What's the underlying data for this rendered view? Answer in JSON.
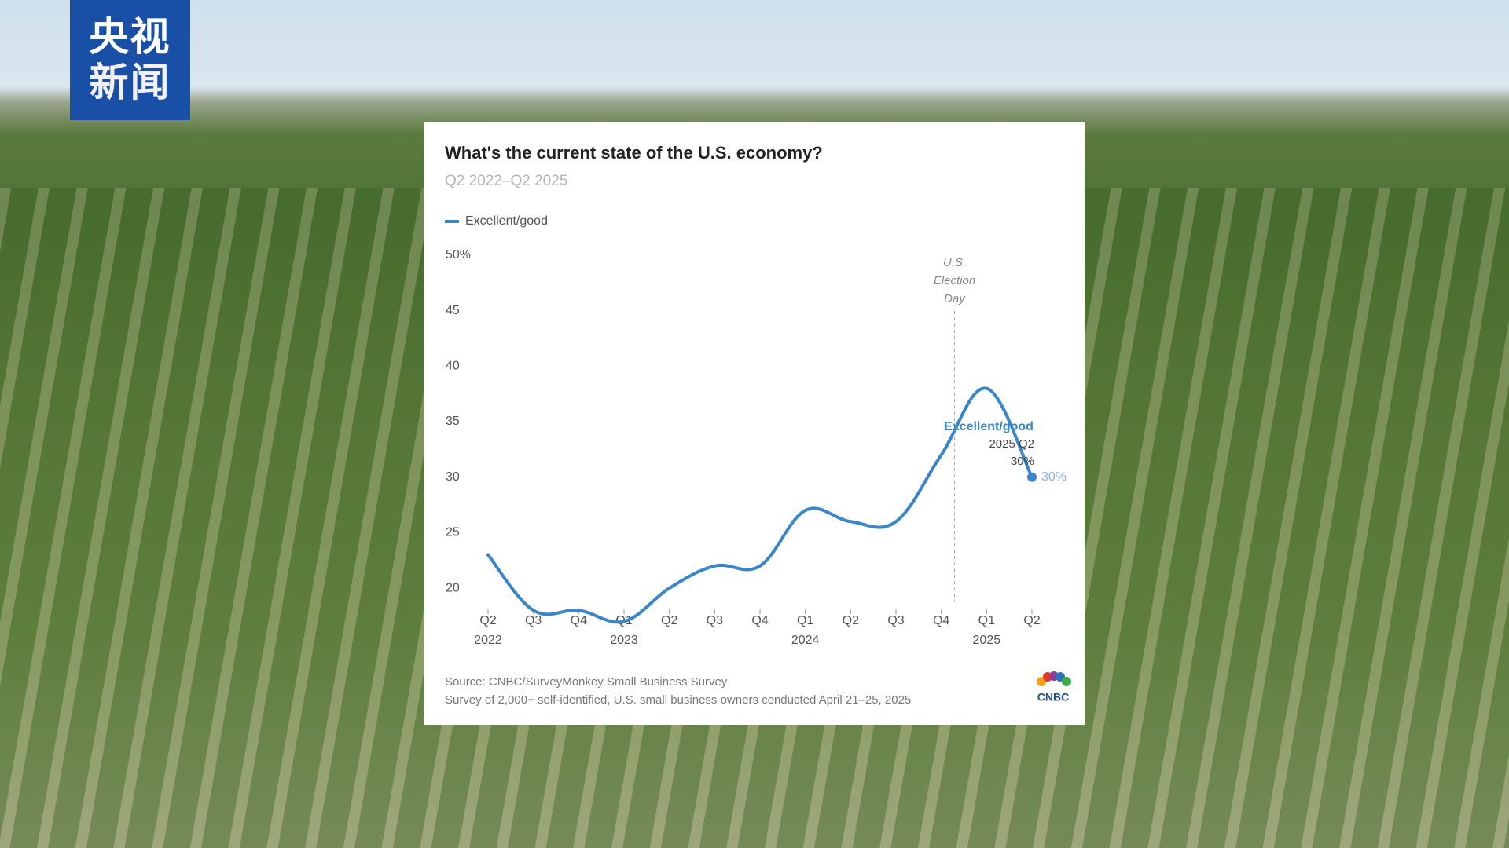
{
  "logo": {
    "line1": "央视",
    "line2": "新闻"
  },
  "chart_data": {
    "type": "line",
    "title": "What's the current state of the U.S. economy?",
    "subtitle": "Q2 2022–Q2 2025",
    "categories": [
      "Q2",
      "Q3",
      "Q4",
      "Q1",
      "Q2",
      "Q3",
      "Q4",
      "Q1",
      "Q2",
      "Q3",
      "Q4",
      "Q1",
      "Q2"
    ],
    "category_years": [
      "2022",
      null,
      null,
      "2023",
      null,
      null,
      null,
      "2024",
      null,
      null,
      null,
      "2025",
      null
    ],
    "series": [
      {
        "name": "Excellent/good",
        "color": "#3a86c8",
        "values": [
          23,
          18,
          18,
          17,
          20,
          22,
          22,
          27,
          26,
          26,
          32,
          38,
          30
        ],
        "value_labels": [
          null,
          null,
          null,
          null,
          null,
          null,
          null,
          null,
          null,
          null,
          null,
          null,
          "30%"
        ]
      }
    ],
    "ylim": [
      18.8,
      50
    ],
    "yticks": [
      20,
      25,
      30,
      35,
      40,
      45,
      {
        "value": 50,
        "label": "50%"
      }
    ],
    "grid": false,
    "legend": "top-left",
    "annotation": {
      "lines": [
        "U.S.",
        "Election",
        "Day"
      ]
    },
    "end_label": {
      "series": "Excellent/good",
      "period": "2025 Q2",
      "value_label": "30%"
    },
    "source": "Source: CNBC/SurveyMonkey Small Business Survey",
    "note": "Survey of 2,000+ self-identified, U.S. small business owners conducted April 21–25, 2025",
    "brand": "CNBC"
  }
}
